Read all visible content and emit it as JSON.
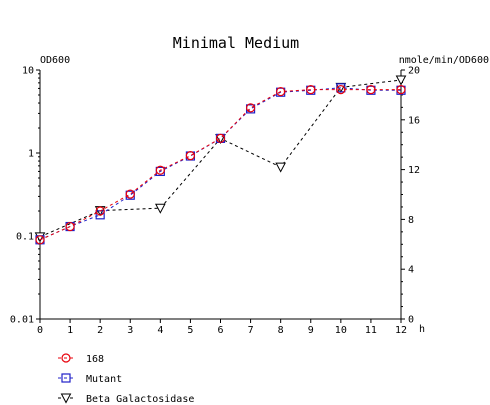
{
  "chart_data": {
    "type": "line",
    "title": "Minimal Medium",
    "xlabel": "h",
    "ylabel_left": "OD600",
    "ylabel_right": "nmole/min/OD600",
    "x_ticks": [
      0,
      1,
      2,
      3,
      4,
      5,
      6,
      7,
      8,
      9,
      10,
      11,
      12
    ],
    "x_range": [
      0,
      12
    ],
    "y_left": {
      "scale": "log",
      "range": [
        0.01,
        10
      ],
      "ticks": [
        0.01,
        0.1,
        1,
        10
      ],
      "tick_labels": [
        "0.01",
        "0.1",
        "1",
        "10"
      ]
    },
    "y_right": {
      "scale": "linear",
      "range": [
        0,
        20
      ],
      "ticks": [
        0,
        4,
        8,
        12,
        16,
        20
      ],
      "tick_labels": [
        "0",
        "4",
        "8",
        "12",
        "16",
        "20"
      ]
    },
    "grid": false,
    "legend_position": "bottom-left",
    "series": [
      {
        "name": "168",
        "axis": "left",
        "marker": "circle",
        "color": "#e8000b",
        "x": [
          0,
          1,
          2,
          3,
          4,
          5,
          6,
          7,
          8,
          9,
          10,
          11,
          12
        ],
        "values": [
          0.09,
          0.13,
          0.2,
          0.32,
          0.62,
          0.93,
          1.5,
          3.5,
          5.5,
          5.8,
          5.8,
          5.8,
          5.8
        ]
      },
      {
        "name": "Mutant",
        "axis": "left",
        "marker": "square",
        "color": "#2020c8",
        "x": [
          0,
          1,
          2,
          3,
          4,
          5,
          6,
          7,
          8,
          9,
          10,
          11,
          12
        ],
        "values": [
          0.09,
          0.13,
          0.18,
          0.31,
          0.6,
          0.92,
          1.5,
          3.4,
          5.4,
          5.7,
          6.1,
          5.7,
          5.7
        ]
      },
      {
        "name": "Beta Galactosidase",
        "axis": "right",
        "marker": "triangle-down",
        "color": "#000000",
        "x": [
          0,
          2,
          4,
          6,
          8,
          10,
          12
        ],
        "values": [
          6.6,
          8.7,
          8.9,
          14.5,
          12.2,
          18.6,
          19.2
        ]
      }
    ]
  }
}
